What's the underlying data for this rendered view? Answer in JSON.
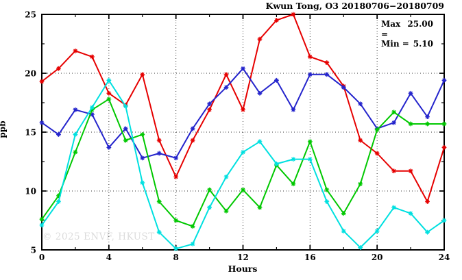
{
  "header": {
    "title": "Kwun Tong, O3 20180706−20180709"
  },
  "annotation": {
    "max_label": "Max =",
    "max_value": "25.00",
    "min_label": "Min =",
    "min_value": "5.10"
  },
  "watermark": "© 2025 ENVF, HKUST",
  "chart_data": {
    "type": "line",
    "title": "Kwun Tong, O3 20180706−20180709",
    "xlabel": "Hours",
    "ylabel": "ppb",
    "xlim": [
      0,
      24
    ],
    "ylim": [
      5,
      25
    ],
    "x_ticks": [
      0,
      4,
      8,
      12,
      16,
      20,
      24
    ],
    "y_ticks": [
      5,
      10,
      15,
      20,
      25
    ],
    "x_minor_step": 2,
    "y_minor_step": 2.5,
    "grid": "dotted lines at interior major ticks, all four axes mirrored with ticks",
    "legend_position": "none",
    "marker": "asterisk",
    "x": [
      0,
      1,
      2,
      3,
      4,
      5,
      6,
      7,
      8,
      9,
      10,
      11,
      12,
      13,
      14,
      15,
      16,
      17,
      18,
      19,
      20,
      21,
      22,
      23,
      24
    ],
    "series": [
      {
        "name": "series-red",
        "color": "#e60000",
        "values": [
          19.3,
          20.4,
          21.9,
          21.4,
          18.3,
          17.3,
          19.9,
          14.3,
          11.2,
          14.3,
          16.9,
          19.9,
          16.9,
          22.9,
          24.5,
          25.0,
          21.4,
          20.9,
          18.9,
          14.3,
          13.2,
          11.7,
          11.7,
          9.1,
          13.7
        ]
      },
      {
        "name": "series-blue",
        "color": "#2424cc",
        "values": [
          15.8,
          14.8,
          16.9,
          16.5,
          13.7,
          15.3,
          12.8,
          13.2,
          12.8,
          15.3,
          17.4,
          18.8,
          20.4,
          18.3,
          19.4,
          16.9,
          19.9,
          19.9,
          18.8,
          17.4,
          15.3,
          15.8,
          18.3,
          16.3,
          19.4
        ]
      },
      {
        "name": "series-green",
        "color": "#00c800",
        "values": [
          7.6,
          9.6,
          13.3,
          16.9,
          17.8,
          14.3,
          14.8,
          9.1,
          7.5,
          7.0,
          10.1,
          8.3,
          10.1,
          8.6,
          12.2,
          10.6,
          14.2,
          10.1,
          8.1,
          10.6,
          15.2,
          16.7,
          15.7,
          15.7,
          15.7
        ]
      },
      {
        "name": "series-cyan",
        "color": "#00e0e0",
        "values": [
          7.1,
          9.1,
          14.8,
          17.1,
          19.4,
          17.2,
          10.7,
          6.5,
          5.1,
          5.5,
          8.6,
          11.2,
          13.3,
          14.2,
          12.3,
          12.7,
          12.7,
          9.1,
          6.6,
          5.2,
          6.6,
          8.6,
          8.1,
          6.5,
          7.5
        ]
      }
    ],
    "stats": {
      "max": 25.0,
      "min": 5.1
    }
  }
}
